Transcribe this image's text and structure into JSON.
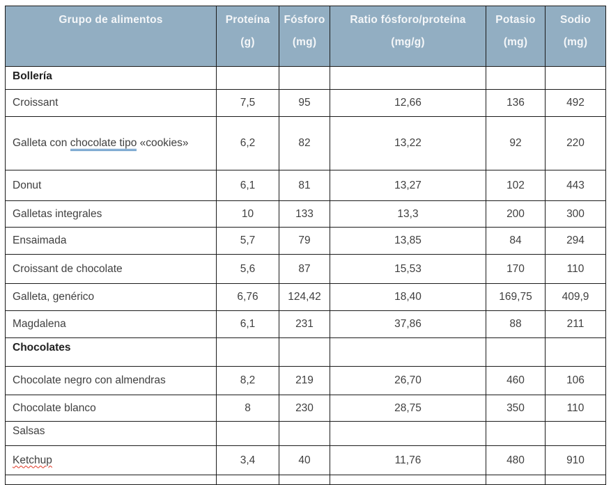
{
  "colors": {
    "header_bg": "#92AEC2",
    "header_text": "#F4F6F8",
    "border": "#1A1A1A",
    "body_text": "#3F3F3F",
    "section_text": "#212121",
    "grammar_underline_blue": "#2E75B6",
    "spellcheck_underline_red": "#E0301E"
  },
  "table": {
    "header": [
      {
        "label": "Grupo de alimentos",
        "unit": ""
      },
      {
        "label": "Proteína",
        "unit": "(g)"
      },
      {
        "label": "Fósforo",
        "unit": "(mg)"
      },
      {
        "label": "Ratio fósforo/proteína",
        "unit": "(mg/g)"
      },
      {
        "label": "Potasio",
        "unit": "(mg)"
      },
      {
        "label": "Sodio",
        "unit": "(mg)"
      }
    ],
    "rows": [
      {
        "type": "section",
        "bold": true,
        "name_parts": [
          {
            "text": "Bollería",
            "style": "plain"
          }
        ],
        "values": [
          "",
          "",
          "",
          "",
          ""
        ]
      },
      {
        "type": "data",
        "name_parts": [
          {
            "text": "Croissant",
            "style": "plain"
          }
        ],
        "values": [
          "7,5",
          "95",
          "12,66",
          "136",
          "492"
        ]
      },
      {
        "type": "data",
        "name_parts": [
          {
            "text": "Galleta con ",
            "style": "plain"
          },
          {
            "text": "chocolate tipo",
            "style": "grammar-underline"
          },
          {
            "text": " «cookies»",
            "style": "plain"
          }
        ],
        "values": [
          "6,2",
          "82",
          "13,22",
          "92",
          "220"
        ]
      },
      {
        "type": "data",
        "name_parts": [
          {
            "text": "Donut",
            "style": "plain"
          }
        ],
        "values": [
          "6,1",
          "81",
          "13,27",
          "102",
          "443"
        ]
      },
      {
        "type": "data",
        "name_parts": [
          {
            "text": "Galletas integrales",
            "style": "plain"
          }
        ],
        "values": [
          "10",
          "133",
          "13,3",
          "200",
          "300"
        ]
      },
      {
        "type": "data",
        "name_parts": [
          {
            "text": "Ensaimada",
            "style": "plain"
          }
        ],
        "values": [
          "5,7",
          "79",
          "13,85",
          "84",
          "294"
        ]
      },
      {
        "type": "data",
        "name_parts": [
          {
            "text": "Croissant de chocolate",
            "style": "plain"
          }
        ],
        "values": [
          "5,6",
          "87",
          "15,53",
          "170",
          "110"
        ]
      },
      {
        "type": "data",
        "name_parts": [
          {
            "text": "Galleta, genérico",
            "style": "plain"
          }
        ],
        "values": [
          "6,76",
          "124,42",
          "18,40",
          "169,75",
          "409,9"
        ]
      },
      {
        "type": "data",
        "name_parts": [
          {
            "text": "Magdalena",
            "style": "plain"
          }
        ],
        "values": [
          "6,1",
          "231",
          "37,86",
          "88",
          "211"
        ]
      },
      {
        "type": "section",
        "bold": true,
        "name_parts": [
          {
            "text": "Chocolates",
            "style": "plain"
          }
        ],
        "values": [
          "",
          "",
          "",
          "",
          ""
        ]
      },
      {
        "type": "data",
        "name_parts": [
          {
            "text": "Chocolate negro con almendras",
            "style": "plain"
          }
        ],
        "values": [
          "8,2",
          "219",
          "26,70",
          "460",
          "106"
        ]
      },
      {
        "type": "data",
        "name_parts": [
          {
            "text": "Chocolate blanco",
            "style": "plain"
          }
        ],
        "values": [
          "8",
          "230",
          "28,75",
          "350",
          "110"
        ]
      },
      {
        "type": "section",
        "bold": false,
        "name_parts": [
          {
            "text": "Salsas",
            "style": "plain"
          }
        ],
        "values": [
          "",
          "",
          "",
          "",
          ""
        ]
      },
      {
        "type": "data",
        "name_parts": [
          {
            "text": "Ketchup",
            "style": "spell-underline"
          }
        ],
        "values": [
          "3,4",
          "40",
          "11,76",
          "480",
          "910"
        ]
      },
      {
        "type": "empty",
        "name_parts": [
          {
            "text": "",
            "style": "plain"
          }
        ],
        "values": [
          "",
          "",
          "",
          "",
          ""
        ]
      }
    ]
  }
}
